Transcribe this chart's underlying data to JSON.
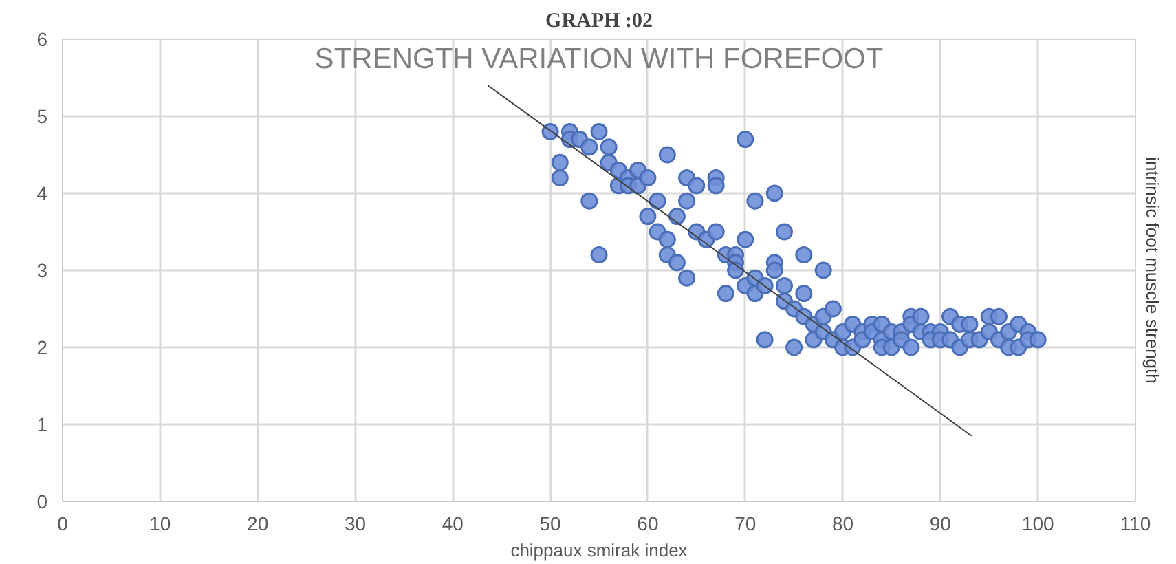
{
  "chart_data": {
    "type": "scatter",
    "title": "GRAPH :02",
    "subtitle": "STRENGTH VARIATION WITH FOREFOOT",
    "xlabel": "chippaux smirak index",
    "ylabel": "intrinsic foot muscle strength",
    "xlim": [
      0,
      110
    ],
    "xticks": [
      0,
      10,
      20,
      30,
      40,
      50,
      60,
      70,
      80,
      90,
      100,
      110
    ],
    "ylim": [
      0,
      6
    ],
    "yticks": [
      0,
      1,
      2,
      3,
      4,
      5,
      6
    ],
    "grid": true,
    "series": [
      {
        "marker": "circle",
        "color": "#6f8fd8",
        "x": [
          50,
          51,
          51,
          52,
          52,
          53,
          54,
          54,
          55,
          55,
          56,
          56,
          57,
          57,
          58,
          58,
          59,
          59,
          60,
          60,
          61,
          61,
          62,
          62,
          62,
          63,
          63,
          64,
          64,
          64,
          65,
          65,
          66,
          67,
          67,
          67,
          68,
          68,
          69,
          69,
          69,
          70,
          70,
          70,
          71,
          71,
          71,
          72,
          72,
          73,
          73,
          73,
          74,
          74,
          74,
          75,
          75,
          76,
          76,
          76,
          77,
          77,
          78,
          78,
          78,
          79,
          79,
          80,
          80,
          81,
          81,
          82,
          82,
          83,
          83,
          84,
          84,
          84,
          85,
          85,
          86,
          86,
          87,
          87,
          87,
          88,
          88,
          89,
          89,
          90,
          90,
          91,
          91,
          92,
          92,
          93,
          93,
          94,
          95,
          95,
          96,
          96,
          97,
          97,
          98,
          98,
          99,
          99,
          100
        ],
        "values": [
          4.8,
          4.4,
          4.2,
          4.8,
          4.7,
          4.7,
          4.6,
          3.9,
          4.8,
          3.2,
          4.6,
          4.4,
          4.3,
          4.1,
          4.2,
          4.1,
          4.3,
          4.1,
          4.2,
          3.7,
          3.9,
          3.5,
          4.5,
          3.4,
          3.2,
          3.7,
          3.1,
          4.2,
          3.9,
          2.9,
          4.1,
          3.5,
          3.4,
          4.2,
          4.1,
          3.5,
          3.2,
          2.7,
          3.2,
          3.1,
          3.0,
          4.7,
          3.4,
          2.8,
          3.9,
          2.9,
          2.7,
          2.8,
          2.1,
          4.0,
          3.1,
          3.0,
          3.5,
          2.8,
          2.6,
          2.5,
          2.0,
          3.2,
          2.7,
          2.4,
          2.3,
          2.1,
          3.0,
          2.4,
          2.2,
          2.5,
          2.1,
          2.2,
          2.0,
          2.3,
          2.0,
          2.2,
          2.1,
          2.3,
          2.2,
          2.3,
          2.1,
          2.0,
          2.2,
          2.0,
          2.2,
          2.1,
          2.4,
          2.3,
          2.0,
          2.4,
          2.2,
          2.2,
          2.1,
          2.2,
          2.1,
          2.4,
          2.1,
          2.3,
          2.0,
          2.3,
          2.1,
          2.1,
          2.4,
          2.2,
          2.4,
          2.1,
          2.2,
          2.0,
          2.3,
          2.0,
          2.2,
          2.1,
          2.1
        ]
      },
      {
        "type": "line",
        "marker": "none",
        "color": "#404040",
        "x": [
          43.6,
          93.2
        ],
        "values": [
          5.4,
          0.85
        ]
      }
    ]
  }
}
